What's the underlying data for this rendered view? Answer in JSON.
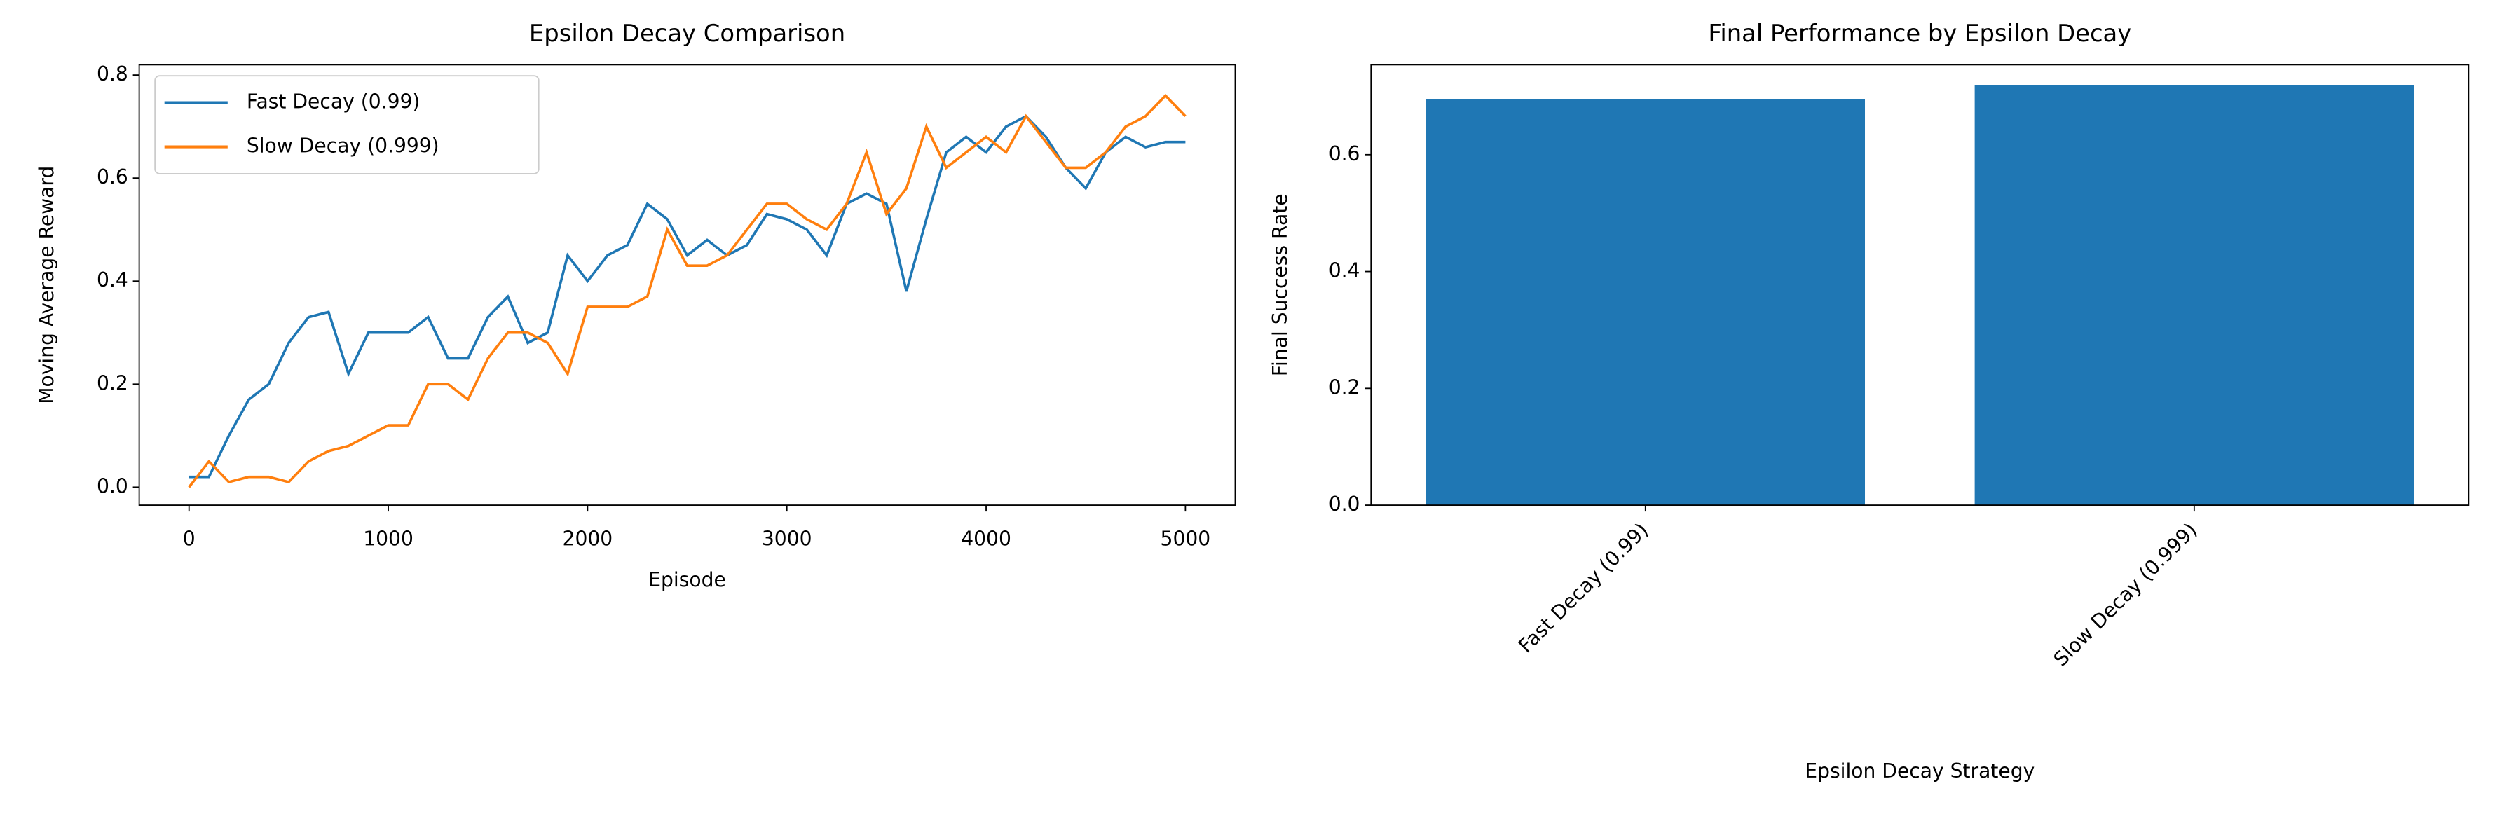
{
  "chart_data": [
    {
      "type": "line",
      "title": "Epsilon Decay Comparison",
      "xlabel": "Episode",
      "ylabel": "Moving Average Reward",
      "x": [
        0,
        100,
        200,
        300,
        400,
        500,
        600,
        700,
        800,
        900,
        1000,
        1100,
        1200,
        1300,
        1400,
        1500,
        1600,
        1700,
        1800,
        1900,
        2000,
        2100,
        2200,
        2300,
        2400,
        2500,
        2600,
        2700,
        2800,
        2900,
        3000,
        3100,
        3200,
        3300,
        3400,
        3500,
        3600,
        3700,
        3800,
        3900,
        4000,
        4100,
        4200,
        4300,
        4400,
        4500,
        4600,
        4700,
        4800,
        4900,
        5000
      ],
      "series": [
        {
          "name": "Fast Decay (0.99)",
          "color": "#1f77b4",
          "values": [
            0.02,
            0.02,
            0.1,
            0.17,
            0.2,
            0.28,
            0.33,
            0.34,
            0.22,
            0.3,
            0.3,
            0.3,
            0.33,
            0.25,
            0.25,
            0.33,
            0.37,
            0.28,
            0.3,
            0.45,
            0.4,
            0.45,
            0.47,
            0.55,
            0.52,
            0.45,
            0.48,
            0.45,
            0.47,
            0.53,
            0.52,
            0.5,
            0.45,
            0.55,
            0.57,
            0.55,
            0.38,
            0.52,
            0.65,
            0.68,
            0.65,
            0.7,
            0.72,
            0.68,
            0.62,
            0.58,
            0.65,
            0.68,
            0.66,
            0.67,
            0.67
          ]
        },
        {
          "name": "Slow Decay (0.999)",
          "color": "#ff7f0e",
          "values": [
            0.0,
            0.05,
            0.01,
            0.02,
            0.02,
            0.01,
            0.05,
            0.07,
            0.08,
            0.1,
            0.12,
            0.12,
            0.2,
            0.2,
            0.17,
            0.25,
            0.3,
            0.3,
            0.28,
            0.22,
            0.35,
            0.35,
            0.35,
            0.37,
            0.5,
            0.43,
            0.43,
            0.45,
            0.5,
            0.55,
            0.55,
            0.52,
            0.5,
            0.55,
            0.65,
            0.53,
            0.58,
            0.7,
            0.62,
            0.65,
            0.68,
            0.65,
            0.72,
            0.67,
            0.62,
            0.62,
            0.65,
            0.7,
            0.72,
            0.76,
            0.72
          ]
        }
      ],
      "xlim": [
        -250,
        5250
      ],
      "ylim": [
        -0.035,
        0.82
      ],
      "xticks": [
        0,
        1000,
        2000,
        3000,
        4000,
        5000
      ],
      "yticks": [
        {
          "value": 0,
          "label": "0.0"
        },
        0.2,
        0.4,
        0.6,
        0.8
      ],
      "legend": "upper left"
    },
    {
      "type": "bar",
      "title": "Final Performance by Epsilon Decay",
      "xlabel": "Epsilon Decay Strategy",
      "ylabel": "Final Success Rate",
      "categories": [
        "Fast Decay (0.99)",
        "Slow Decay (0.999)"
      ],
      "values": [
        0.695,
        0.719
      ],
      "color": "#1f77b4",
      "ylim": [
        0,
        0.754
      ],
      "yticks": [
        {
          "value": 0,
          "label": "0.0"
        },
        0.2,
        0.4,
        0.6
      ]
    }
  ]
}
